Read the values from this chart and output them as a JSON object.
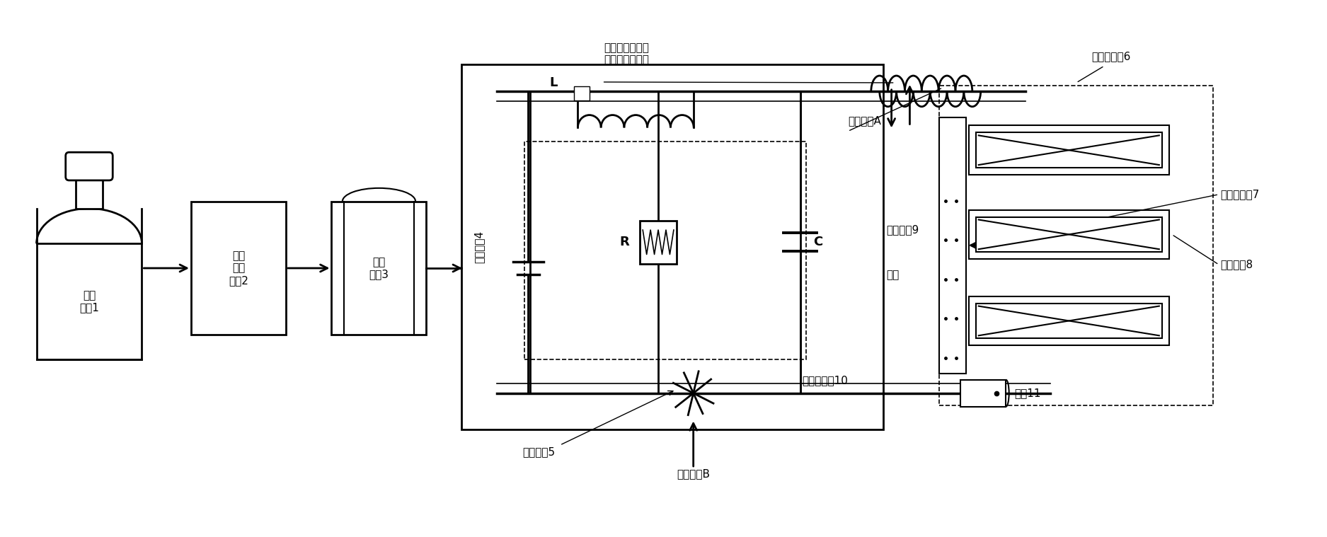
{
  "bg_color": "#ffffff",
  "line_color": "#000000",
  "fig_width": 18.75,
  "fig_height": 7.59,
  "labels": {
    "tank1": "高压\n储罐1",
    "module2": "压力\n调节\n模块2",
    "tank3": "低压\n储罐3",
    "unit4": "放电单元4",
    "unit5": "滤波单元5",
    "thruster6": "霍尔推力器6",
    "distributor7": "气体分配器7",
    "channel8": "放电通道8",
    "wire9": "阳极引线9",
    "wire10": "阴极负引线10",
    "cathode11": "阴极11",
    "valve_a": "热节流阀A",
    "valve_b": "热节流阀B",
    "L": "L",
    "R": "R",
    "C": "C",
    "anode": "阳极",
    "current_label": "低频振荡放电电\n流（阳极电流）"
  }
}
